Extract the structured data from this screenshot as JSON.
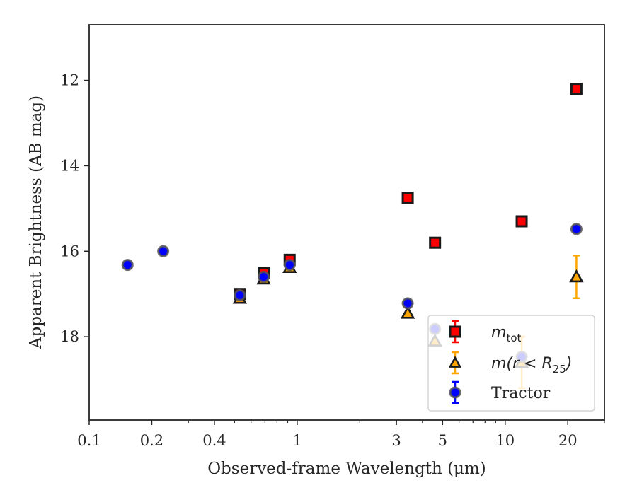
{
  "chart_data": {
    "type": "scatter",
    "title": "",
    "xlabel": "Observed-frame Wavelength (μm)",
    "ylabel": "Apparent Brightness (AB mag)",
    "xscale": "log",
    "xlim": [
      0.1,
      30
    ],
    "ylim": [
      19.95,
      10.7
    ],
    "y_inverted": true,
    "xticks": [
      {
        "value": 0.1,
        "label": "0.1"
      },
      {
        "value": 0.2,
        "label": "0.2"
      },
      {
        "value": 0.4,
        "label": "0.4"
      },
      {
        "value": 1,
        "label": "1"
      },
      {
        "value": 3,
        "label": "3"
      },
      {
        "value": 5,
        "label": "5"
      },
      {
        "value": 10,
        "label": "10"
      },
      {
        "value": 20,
        "label": "20"
      }
    ],
    "yticks": [
      {
        "value": 12,
        "label": "12"
      },
      {
        "value": 14,
        "label": "14"
      },
      {
        "value": 16,
        "label": "16"
      },
      {
        "value": 18,
        "label": "18"
      }
    ],
    "grid": false,
    "legend_position": "lower-right",
    "series": [
      {
        "key": "mtot",
        "legend": {
          "base": "m",
          "sub": "tot"
        },
        "marker": "square",
        "face_color": "#ff0000",
        "edge_color": "#1a1a1a",
        "error_color": "#ff0000",
        "points": [
          {
            "x": 0.53,
            "y": 17.0
          },
          {
            "x": 0.69,
            "y": 16.5
          },
          {
            "x": 0.92,
            "y": 16.2
          },
          {
            "x": 3.4,
            "y": 14.75
          },
          {
            "x": 4.6,
            "y": 15.8
          },
          {
            "x": 12.0,
            "y": 15.3
          },
          {
            "x": 22.0,
            "y": 12.2
          }
        ]
      },
      {
        "key": "mr25",
        "legend": {
          "pre": "m(r < R",
          "sub": "25",
          "post": ")"
        },
        "marker": "triangle",
        "face_color": "#ffa500",
        "edge_color": "#1a1a1a",
        "error_color": "#ffa500",
        "points": [
          {
            "x": 0.53,
            "y": 17.1
          },
          {
            "x": 0.69,
            "y": 16.65
          },
          {
            "x": 0.92,
            "y": 16.38
          },
          {
            "x": 3.4,
            "y": 17.45
          },
          {
            "x": 4.6,
            "y": 18.1
          },
          {
            "x": 12.0,
            "y": 18.6,
            "err": 0.6
          },
          {
            "x": 22.0,
            "y": 16.6,
            "err": 0.5
          }
        ]
      },
      {
        "key": "tractor",
        "legend": {
          "label": "Tractor"
        },
        "marker": "circle",
        "face_color": "#0000ff",
        "edge_color": "#555555",
        "error_color": "#0000ff",
        "points": [
          {
            "x": 0.153,
            "y": 16.32
          },
          {
            "x": 0.227,
            "y": 16.0
          },
          {
            "x": 0.53,
            "y": 17.03
          },
          {
            "x": 0.69,
            "y": 16.6
          },
          {
            "x": 0.92,
            "y": 16.32
          },
          {
            "x": 3.4,
            "y": 17.22
          },
          {
            "x": 4.6,
            "y": 17.82
          },
          {
            "x": 12.0,
            "y": 18.47
          },
          {
            "x": 22.0,
            "y": 15.48
          }
        ]
      }
    ]
  }
}
